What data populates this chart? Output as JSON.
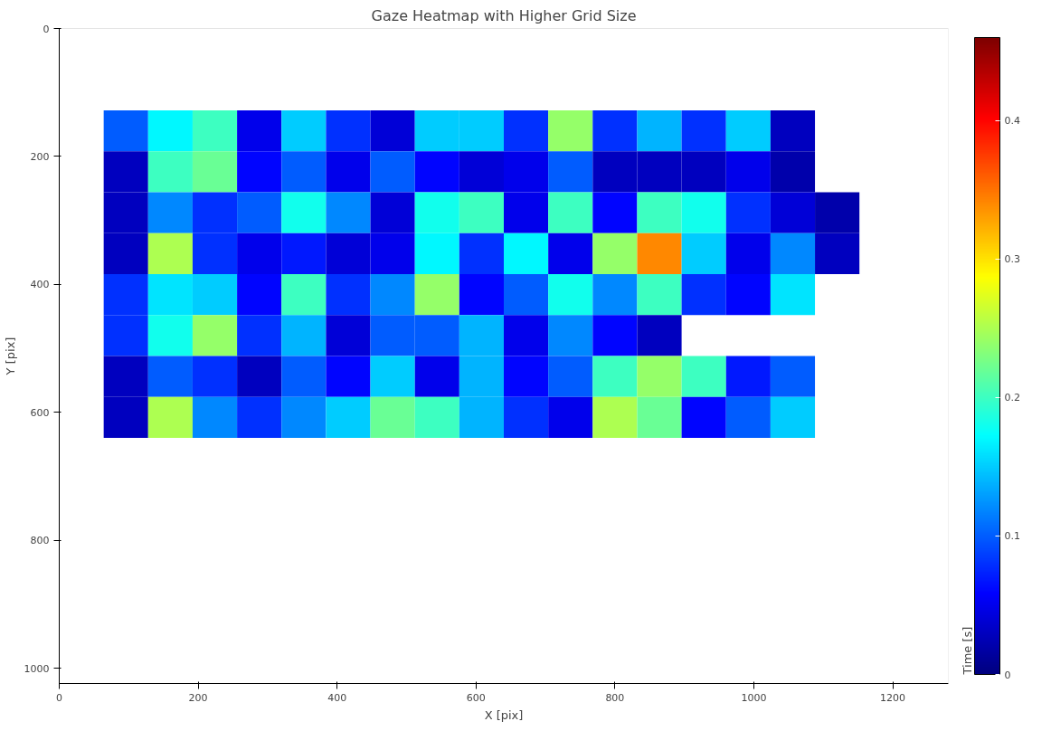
{
  "chart_data": {
    "type": "heatmap",
    "title": "Gaze Heatmap with Higher Grid Size",
    "xlabel": "X [pix]",
    "ylabel": "Y [pix]",
    "clabel": "Time [s]",
    "x": [
      96,
      160,
      224,
      288,
      352,
      416,
      480,
      544,
      608,
      672,
      736,
      800,
      864,
      928,
      992,
      1056,
      1120
    ],
    "y": [
      160,
      224,
      288,
      352,
      416,
      480,
      544,
      608
    ],
    "cells": [
      [
        0.1,
        0.17,
        0.2,
        0.05,
        0.15,
        0.08,
        0.04,
        0.15,
        0.15,
        0.08,
        0.24,
        0.08,
        0.14,
        0.08,
        0.15,
        0.03,
        null
      ],
      [
        0.03,
        0.2,
        0.22,
        0.06,
        0.1,
        0.05,
        0.1,
        0.06,
        0.04,
        0.05,
        0.1,
        0.03,
        0.03,
        0.03,
        0.05,
        0.02,
        null
      ],
      [
        0.03,
        0.12,
        0.08,
        0.1,
        0.18,
        0.12,
        0.04,
        0.18,
        0.2,
        0.05,
        0.2,
        0.06,
        0.2,
        0.18,
        0.08,
        0.04,
        0.02
      ],
      [
        0.03,
        0.25,
        0.08,
        0.05,
        0.07,
        0.04,
        0.05,
        0.17,
        0.08,
        0.17,
        0.05,
        0.24,
        0.34,
        0.15,
        0.05,
        0.12,
        0.03
      ],
      [
        0.08,
        0.16,
        0.15,
        0.06,
        0.2,
        0.08,
        0.12,
        0.24,
        0.06,
        0.1,
        0.18,
        0.12,
        0.2,
        0.08,
        0.06,
        0.16,
        null
      ],
      [
        0.08,
        0.18,
        0.24,
        0.08,
        0.14,
        0.04,
        0.1,
        0.1,
        0.14,
        0.05,
        0.12,
        0.06,
        0.03,
        null,
        null,
        null,
        null
      ],
      [
        0.03,
        0.1,
        0.08,
        0.03,
        0.1,
        0.06,
        0.15,
        0.05,
        0.14,
        0.06,
        0.1,
        0.2,
        0.24,
        0.2,
        0.07,
        0.1,
        null
      ],
      [
        0.03,
        0.25,
        0.12,
        0.08,
        0.12,
        0.15,
        0.22,
        0.2,
        0.14,
        0.08,
        0.05,
        0.25,
        0.22,
        0.06,
        0.1,
        0.15,
        null
      ]
    ],
    "xlim": [
      0,
      1280
    ],
    "ylim": [
      1024,
      0
    ],
    "xticks": [
      0,
      200,
      400,
      600,
      800,
      1000,
      1200
    ],
    "yticks": [
      0,
      200,
      400,
      600,
      800,
      1000
    ],
    "clim": [
      0,
      0.46
    ],
    "cticks": [
      0.0,
      0.1,
      0.2,
      0.3,
      0.4
    ]
  }
}
